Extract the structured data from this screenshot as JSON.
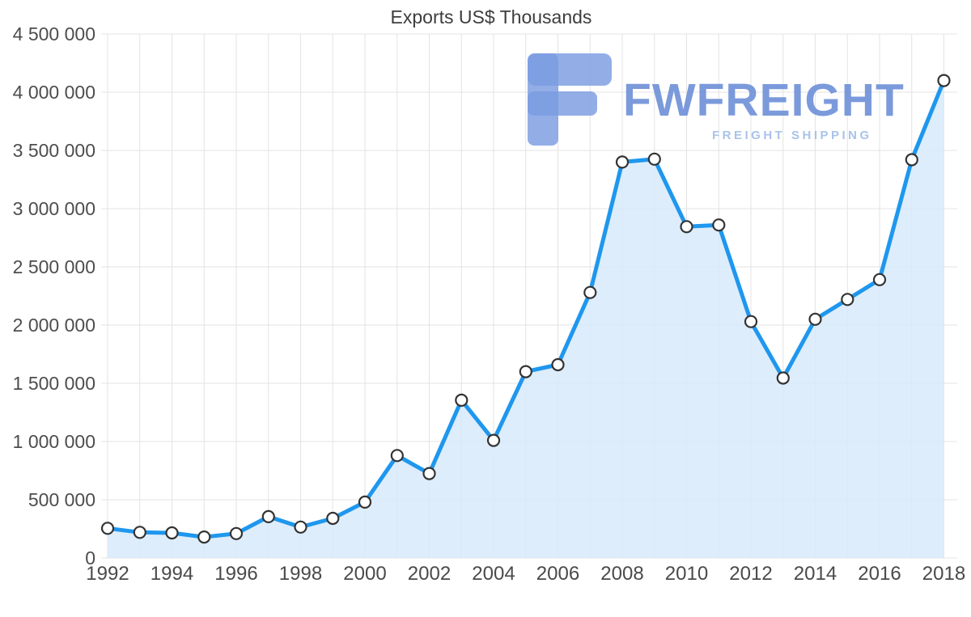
{
  "watermark": {
    "brand": "FWFREIGHT",
    "tagline": "FREIGHT SHIPPING",
    "brand_color": "#7092d8",
    "tagline_color": "#a9c3ea"
  },
  "chart_data": {
    "type": "area",
    "title": "Exports US$ Thousands",
    "xlabel": "",
    "ylabel": "",
    "x": [
      1992,
      1993,
      1994,
      1995,
      1996,
      1997,
      1998,
      1999,
      2000,
      2001,
      2002,
      2003,
      2004,
      2005,
      2006,
      2007,
      2008,
      2009,
      2010,
      2011,
      2012,
      2013,
      2014,
      2015,
      2016,
      2017,
      2018
    ],
    "values": [
      255000,
      220000,
      215000,
      180000,
      210000,
      355000,
      265000,
      340000,
      480000,
      880000,
      725000,
      1355000,
      1010000,
      1600000,
      1660000,
      2280000,
      3400000,
      3425000,
      2845000,
      2860000,
      2030000,
      1545000,
      2050000,
      2220000,
      2390000,
      3420000,
      4100000
    ],
    "ylim": [
      0,
      4500000
    ],
    "y_ticks": {
      "values": [
        0,
        500000,
        1000000,
        1500000,
        2000000,
        2500000,
        3000000,
        3500000,
        4000000,
        4500000
      ],
      "labels": [
        "0",
        "500 000",
        "1 000 000",
        "1 500 000",
        "2 000 000",
        "2 500 000",
        "3 000 000",
        "3 500 000",
        "4 000 000",
        "4 500 000"
      ]
    },
    "x_ticks": [
      1992,
      1994,
      1996,
      1998,
      2000,
      2002,
      2004,
      2006,
      2008,
      2010,
      2012,
      2014,
      2016,
      2018
    ],
    "grid": true,
    "legend": "none",
    "line_color": "#1f97ee",
    "area_color": "#d7eafa",
    "marker_fill": "#ffffff",
    "marker_stroke": "#333333"
  }
}
